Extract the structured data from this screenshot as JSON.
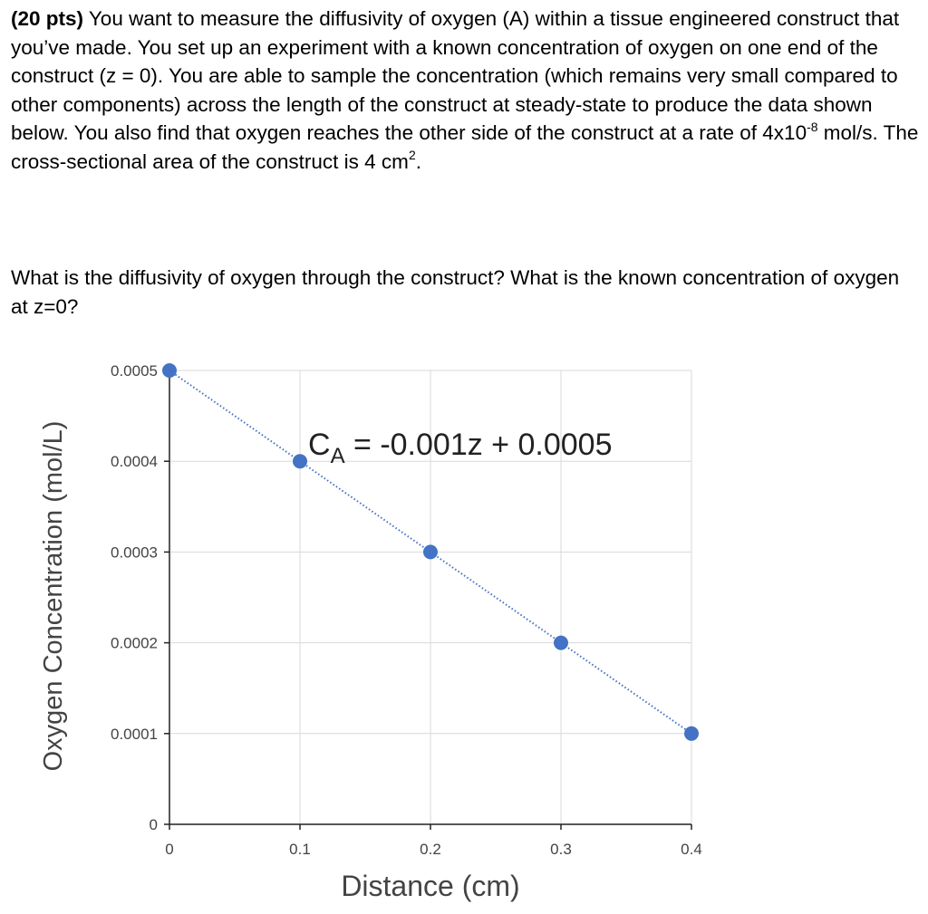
{
  "problem": {
    "points": "(20 pts)",
    "text_1": " You want to measure the diffusivity of oxygen (A) within a tissue engineered construct that you’ve made. You set up an experiment with a known concentration of oxygen on one end of the construct (z = 0). You are able to sample the concentration (which remains very small compared to other components) across the length of the construct at steady-state to produce the data shown below. You also find that oxygen reaches the other side of the construct at a rate of 4x10",
    "exponent": "-8",
    "text_2": " mol/s. The cross-sectional area of the construct is 4 cm",
    "area_exponent": "2",
    "text_3": "."
  },
  "question": "What is the diffusivity of oxygen through the construct? What is the known concentration of oxygen at z=0?",
  "chart_data": {
    "type": "scatter",
    "x": [
      0,
      0.1,
      0.2,
      0.3,
      0.4
    ],
    "y": [
      0.0005,
      0.0004,
      0.0003,
      0.0002,
      0.0001
    ],
    "xlabel": "Distance (cm)",
    "ylabel": "Oxygen Concentration (mol/L)",
    "xlim": [
      0,
      0.4
    ],
    "ylim": [
      0,
      0.0005
    ],
    "xticks": [
      "0",
      "0.1",
      "0.2",
      "0.3",
      "0.4"
    ],
    "yticks": [
      "0",
      "0.0001",
      "0.0002",
      "0.0003",
      "0.0004",
      "0.0005"
    ],
    "trendline": {
      "slope": -0.001,
      "intercept": 0.0005,
      "style": "dotted"
    },
    "equation": {
      "lhs": "C",
      "subscript": "A",
      "rhs": " = -0.001z + 0.0005"
    },
    "grid": true,
    "marker_color": "#4472c4",
    "trendline_color": "#4472c4"
  }
}
